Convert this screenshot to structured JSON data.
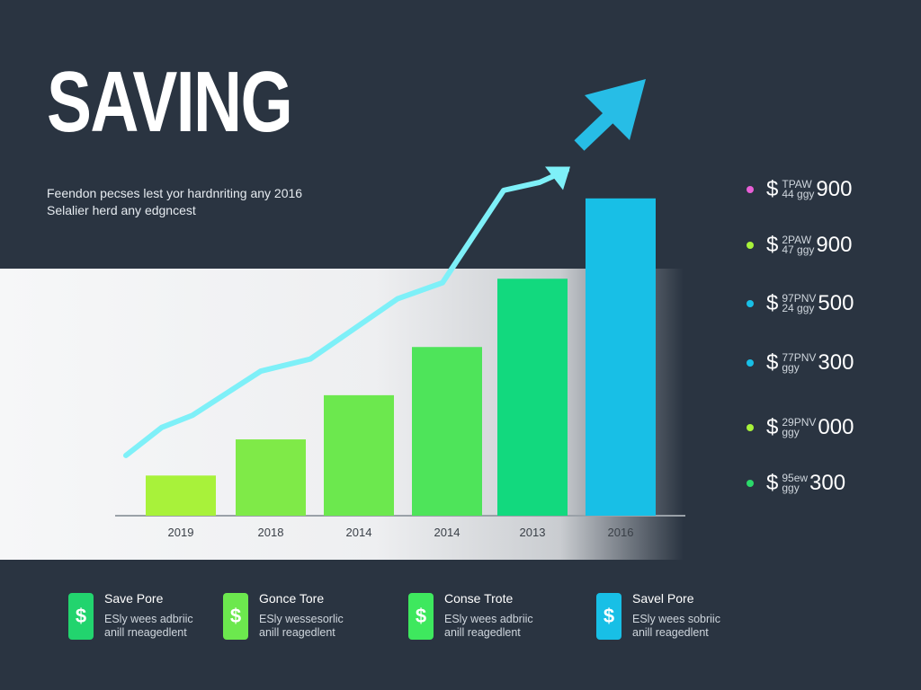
{
  "header": {
    "title": "SAVING",
    "subtitle_line1": "Feendon pecses lest yor hardnriting any 2016",
    "subtitle_line2": "Selalier herd any edgncest"
  },
  "chart_data": {
    "type": "bar",
    "categories": [
      "2019",
      "2018",
      "2014",
      "2014",
      "2013",
      "2016"
    ],
    "values": [
      100,
      190,
      300,
      420,
      590,
      790
    ],
    "bar_colors": [
      "#a8f23a",
      "#7fea48",
      "#6ce84e",
      "#4ee45a",
      "#12d97e",
      "#18bfe6"
    ],
    "trend_line": [
      {
        "x": "2019",
        "y": 150
      },
      {
        "x": "2019",
        "y": 220
      },
      {
        "x": "2018",
        "y": 250
      },
      {
        "x": "2018",
        "y": 360
      },
      {
        "x": "2014",
        "y": 390
      },
      {
        "x": "2014",
        "y": 540
      },
      {
        "x": "2014",
        "y": 580
      },
      {
        "x": "2013",
        "y": 810
      },
      {
        "x": "2013",
        "y": 830
      },
      {
        "x": "2016",
        "y": 860
      }
    ],
    "trend_color": "#7ef0f8",
    "ylim": [
      0,
      850
    ],
    "xlabel": "",
    "ylabel": ""
  },
  "legend": [
    {
      "color": "#e85fd6",
      "code_top": "TPAW",
      "code_bottom": "44 ggy",
      "value": "900"
    },
    {
      "color": "#a8f23a",
      "code_top": "2PAW",
      "code_bottom": "47 ggy",
      "value": "900"
    },
    {
      "color": "#18bfe6",
      "code_top": "97PNV",
      "code_bottom": "24 ggy",
      "value": "500"
    },
    {
      "color": "#18bfe6",
      "code_top": "77PNV",
      "code_bottom": "ggy",
      "value": "300"
    },
    {
      "color": "#a8f23a",
      "code_top": "29PNV",
      "code_bottom": "ggy",
      "value": "000"
    },
    {
      "color": "#2bd96a",
      "code_top": "95ew",
      "code_bottom": "ggy",
      "value": "300"
    }
  ],
  "legend_currency": "$",
  "tiles": [
    {
      "icon": "dollar-icon",
      "icon_char": "$",
      "color": "#22d46e",
      "title": "Save Pore",
      "desc1": "ESly wees adbriic",
      "desc2": "anill rneagedlent"
    },
    {
      "icon": "dollar-icon",
      "icon_char": "$",
      "color": "#6ce84e",
      "title": "Gonce Tore",
      "desc1": "ESly wessesorlic",
      "desc2": "anill reagedlent"
    },
    {
      "icon": "dollar-icon",
      "icon_char": "$",
      "color": "#3ee85e",
      "title": "Conse Trote",
      "desc1": "ESly wees adbriic",
      "desc2": "anill reagedlent"
    },
    {
      "icon": "dollar-icon",
      "icon_char": "$",
      "color": "#18bfe6",
      "title": "Savel Pore",
      "desc1": "ESly wees sobriic",
      "desc2": "anill reagedlent"
    }
  ]
}
